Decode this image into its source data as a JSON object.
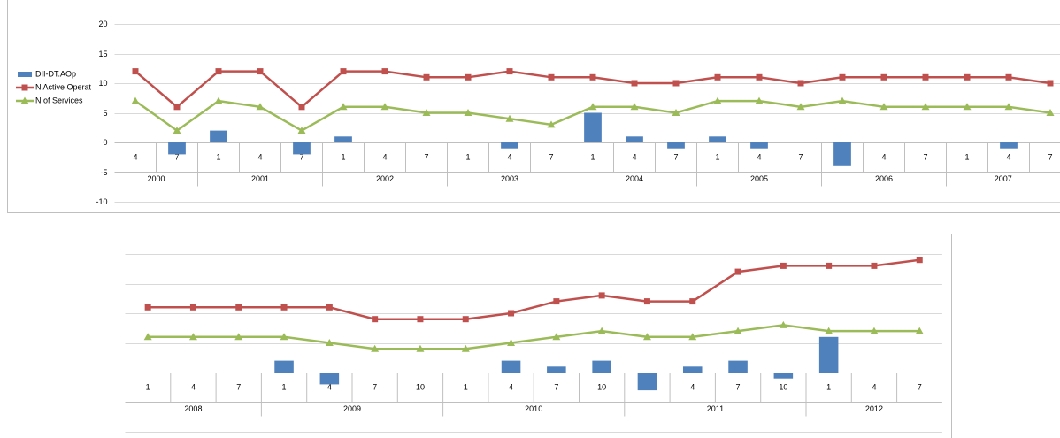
{
  "chart_data": [
    {
      "type": "bar-line",
      "categories": [
        "4",
        "7",
        "1",
        "4",
        "7",
        "1",
        "4",
        "7",
        "1",
        "4",
        "7",
        "1",
        "4",
        "7",
        "1",
        "4",
        "7",
        "1",
        "4",
        "7",
        "1",
        "4",
        "7"
      ],
      "year_groups": [
        {
          "label": "2000",
          "count": 2
        },
        {
          "label": "2001",
          "count": 3
        },
        {
          "label": "2002",
          "count": 3
        },
        {
          "label": "2003",
          "count": 3
        },
        {
          "label": "2004",
          "count": 3
        },
        {
          "label": "2005",
          "count": 3
        },
        {
          "label": "2006",
          "count": 3
        },
        {
          "label": "2007",
          "count": 3
        }
      ],
      "series": [
        {
          "name": "DII-DT.AOp",
          "kind": "bar",
          "color": "#4f81bd",
          "values": [
            0,
            -2,
            2,
            0,
            -2,
            1,
            0,
            0,
            0,
            -1,
            0,
            5,
            1,
            -1,
            1,
            -1,
            0,
            -4,
            0,
            0,
            0,
            -1,
            0
          ]
        },
        {
          "name": "N Active Operat",
          "kind": "line",
          "marker": "square",
          "color": "#c0504d",
          "values": [
            12,
            6,
            12,
            12,
            6,
            12,
            12,
            11,
            11,
            12,
            11,
            11,
            10,
            10,
            11,
            11,
            10,
            11,
            11,
            11,
            11,
            11,
            10
          ]
        },
        {
          "name": "N of Services",
          "kind": "line",
          "marker": "triangle",
          "color": "#9bbb59",
          "values": [
            7,
            2,
            7,
            6,
            2,
            6,
            6,
            5,
            5,
            4,
            3,
            6,
            6,
            5,
            7,
            7,
            6,
            7,
            6,
            6,
            6,
            6,
            5
          ]
        }
      ],
      "ylim": [
        -10,
        20
      ],
      "yticks": [
        -10,
        -5,
        0,
        5,
        10,
        15,
        20
      ],
      "ytick_labels": true,
      "grid": true,
      "legend": "left"
    },
    {
      "type": "bar-line",
      "categories": [
        "1",
        "4",
        "7",
        "1",
        "4",
        "7",
        "10",
        "1",
        "4",
        "7",
        "10",
        "1",
        "4",
        "7",
        "10",
        "1",
        "4",
        "7"
      ],
      "year_groups": [
        {
          "label": "2008",
          "count": 3
        },
        {
          "label": "2009",
          "count": 4
        },
        {
          "label": "2010",
          "count": 4
        },
        {
          "label": "2011",
          "count": 4
        },
        {
          "label": "2012",
          "count": 3
        }
      ],
      "series": [
        {
          "kind": "bar",
          "color": "#4f81bd",
          "values": [
            0,
            0,
            0,
            2,
            -2,
            0,
            0,
            0,
            2,
            1,
            2,
            -3,
            1,
            2,
            -1,
            6,
            0,
            0
          ]
        },
        {
          "kind": "line",
          "marker": "square",
          "color": "#c0504d",
          "values": [
            11,
            11,
            11,
            11,
            11,
            9,
            9,
            9,
            10,
            12,
            13,
            12,
            12,
            17,
            18,
            18,
            18,
            19
          ]
        },
        {
          "kind": "line",
          "marker": "triangle",
          "color": "#9bbb59",
          "values": [
            6,
            6,
            6,
            6,
            5,
            4,
            4,
            4,
            5,
            6,
            7,
            6,
            6,
            7,
            8,
            7,
            7,
            7
          ]
        }
      ],
      "ylim": [
        -10,
        20
      ],
      "yticks": [
        -10,
        -5,
        0,
        5,
        10,
        15,
        20
      ],
      "ytick_labels": false,
      "grid": true,
      "legend": "none"
    }
  ]
}
